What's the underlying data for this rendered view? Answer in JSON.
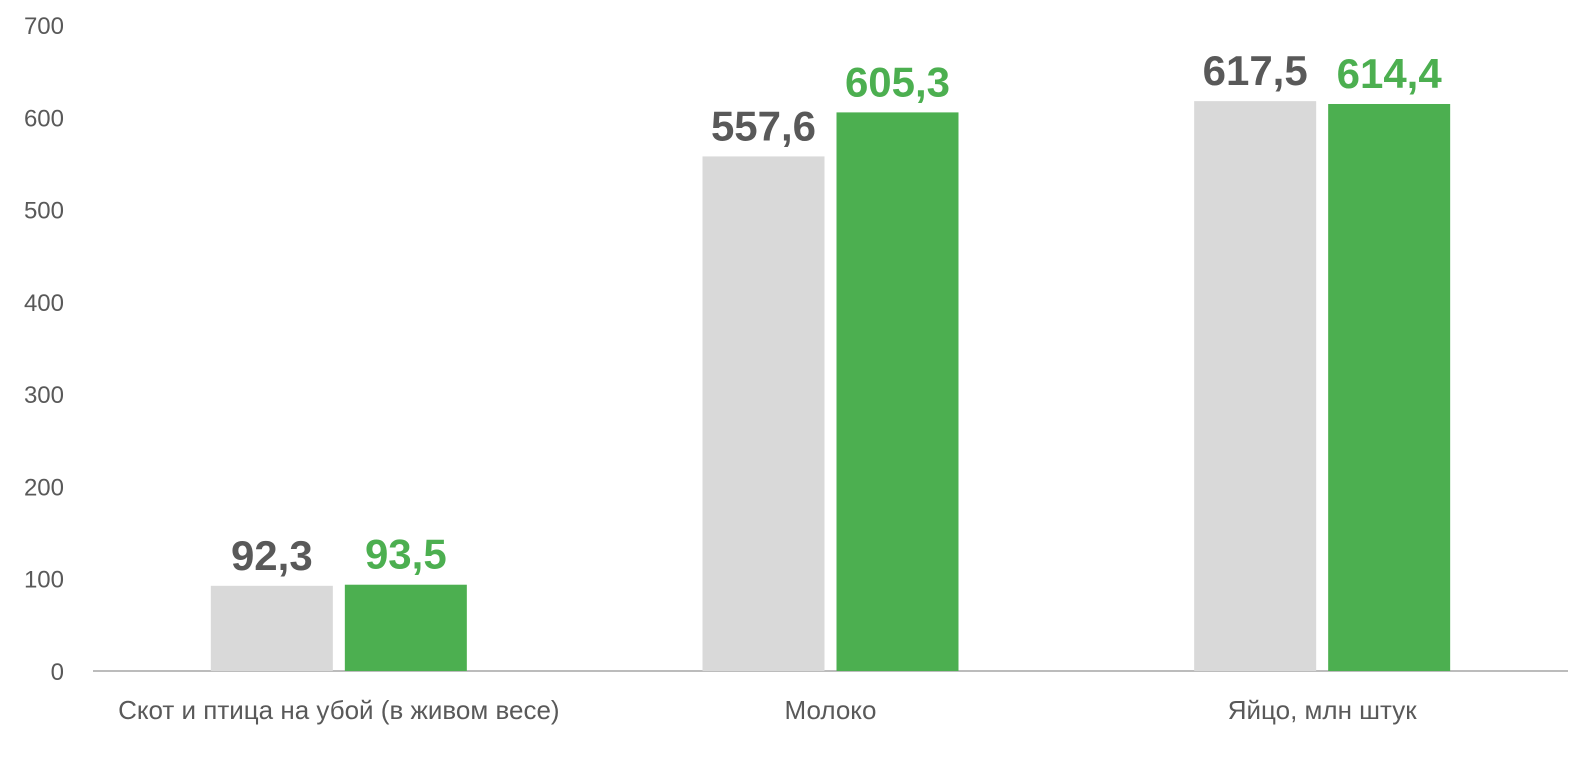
{
  "chart_data": {
    "type": "bar",
    "categories": [
      "Скот и птица на убой (в живом весе)",
      "Молоко",
      "Яйцо, млн штук"
    ],
    "series": [
      {
        "color": "#d9d9d9",
        "label_color": "#595959",
        "values": [
          92.3,
          557.6,
          617.5
        ],
        "value_labels": [
          "92,3",
          "557,6",
          "617,5"
        ]
      },
      {
        "color": "#4caf50",
        "label_color": "#4caf50",
        "values": [
          93.5,
          605.3,
          614.4
        ],
        "value_labels": [
          "93,5",
          "605,3",
          "614,4"
        ]
      }
    ],
    "ylim": [
      0,
      700
    ],
    "yticks": [
      0,
      100,
      200,
      300,
      400,
      500,
      600,
      700
    ],
    "grid": false
  }
}
